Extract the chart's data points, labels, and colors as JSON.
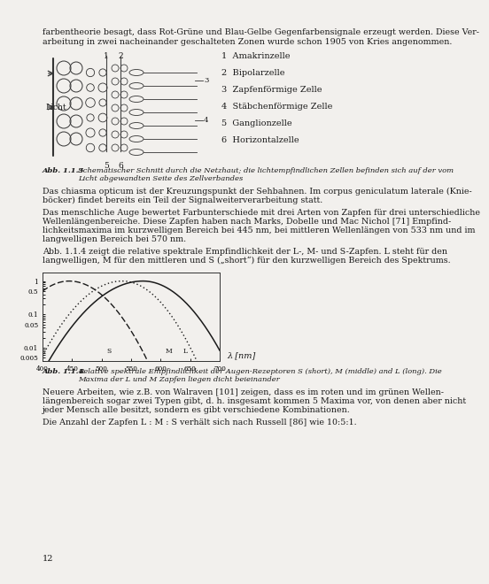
{
  "page_bg": "#f2f0ed",
  "text_color": "#1a1a1a",
  "top_text_line1": "farbentheorie besagt, dass Rot-Grüne und Blau-Gelbe Gegenfarbensignale erzeugt werden. Diese Ver-",
  "top_text_line2": "arbeitung in zwei nacheinander geschalteten Zonen wurde schon 1905 von Kries angenommen.",
  "para1_lines": [
    "Das chiasma opticum ist der Kreuzungspunkt der Sehbahnen. Im corpus geniculatum laterale (Knie-",
    "böcker) findet bereits ein Teil der Signalweiterverarbeitung statt."
  ],
  "para2_lines": [
    "Das menschliche Auge bewertet Farbunterschiede mit drei Arten von Zapfen für drei unterschiedliche",
    "Wellenlängenbereiche. Diese Zapfen haben nach Marks, Dobelle und Mac Nichol [71] Empfind-",
    "lichkeitsmaxima im kurzwelligen Bereich bei 445 nm, bei mittleren Wellenlängen von 533 nm und im",
    "langwelligen Bereich bei 570 nm."
  ],
  "para3_lines": [
    "Abb. 1.1.4 zeigt die relative spektrale Empfindlichkeit der L-, M- und S-Zapfen. L steht für den",
    "langwelligen, M für den mittleren und S („short“) für den kurzwelligen Bereich des Spektrums."
  ],
  "fig114_cap1": "Abb. 1.1.4  Relative spektrale Empfindlichkeit der Augen-Rezeptoren S (short), M (middle) and L (long). Die",
  "fig114_cap2": "          Maxima der L und M Zapfen liegen dicht beieinander",
  "para4_lines": [
    "Neuere Arbeiten, wie z.B. von Walraven [101] zeigen, dass es im roten und im grünen Wellen-",
    "längenbereich sogar zwei Typen gibt, d. h. insgesamt kommen 5 Maxima vor, von denen aber nicht",
    "jeder Mensch alle besitzt, sondern es gibt verschiedene Kombinationen."
  ],
  "para5": "Die Anzahl der Zapfen L : M : S verhält sich nach Russell [86] wie 10:5:1.",
  "page_number": "12",
  "cell_labels": [
    "1  Amakrinzelle",
    "2  Bipolarzelle",
    "3  Zapfenförmige Zelle",
    "4  Stäbchenförmige Zelle",
    "5  Ganglionzelle",
    "6  Horizontalzelle"
  ],
  "xlabel": "λ [nm]",
  "xticks": [
    400,
    450,
    500,
    550,
    600,
    650,
    700
  ],
  "yticks": [
    0.005,
    0.01,
    0.05,
    0.1,
    0.5,
    1
  ],
  "ytick_labels": [
    "0.005",
    "0.01",
    "0.05",
    "0.1",
    "0.5",
    "1"
  ]
}
